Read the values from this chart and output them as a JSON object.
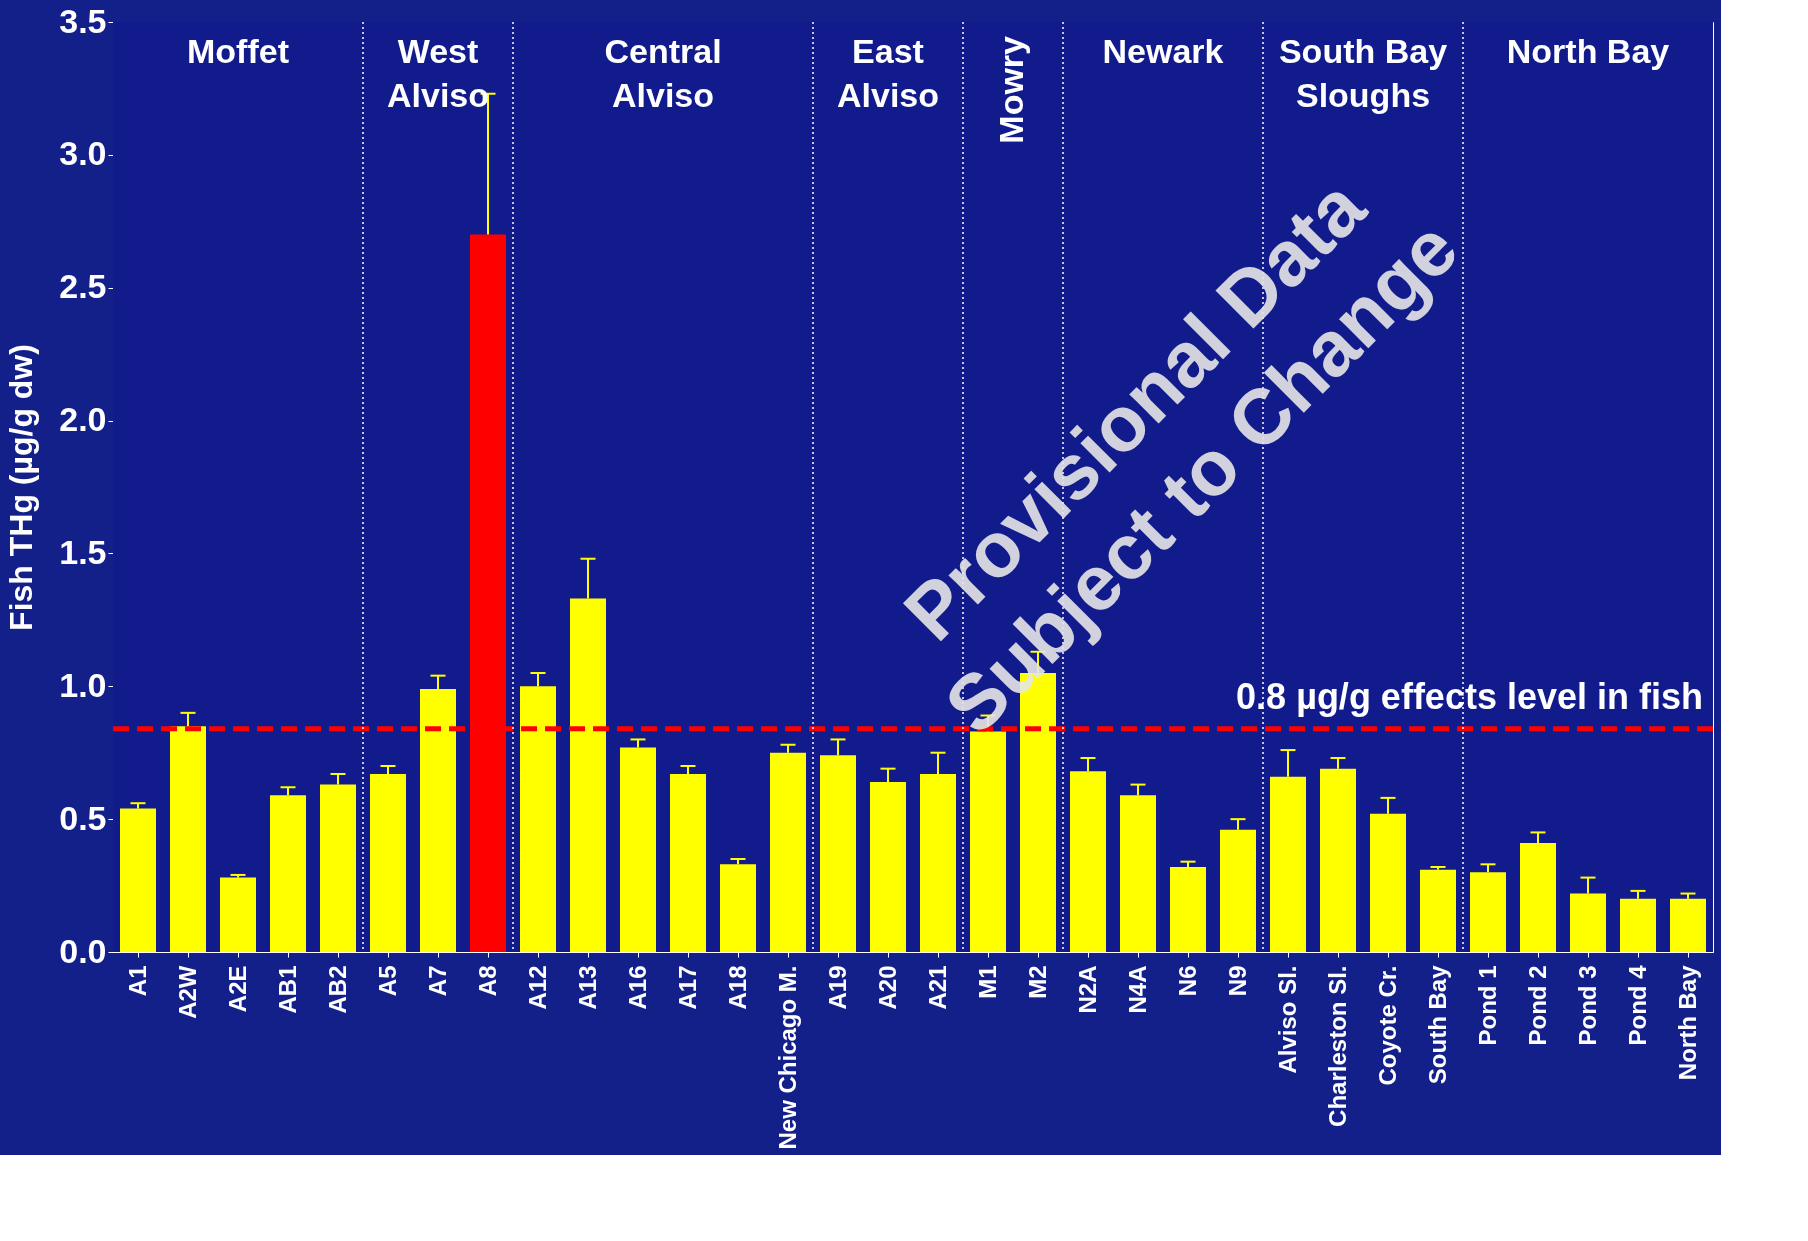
{
  "chart_data": {
    "type": "bar",
    "ylabel": "Fish THg (µg/g dw)",
    "categories": [
      "A1",
      "A2W",
      "A2E",
      "AB1",
      "AB2",
      "A5",
      "A7",
      "A8",
      "A12",
      "A13",
      "A16",
      "A17",
      "A18",
      "New Chicago M.",
      "A19",
      "A20",
      "A21",
      "M1",
      "M2",
      "N2A",
      "N4A",
      "N6",
      "N9",
      "Alviso Sl.",
      "Charleston Sl.",
      "Coyote Cr.",
      "South Bay",
      "Pond 1",
      "Pond 2",
      "Pond 3",
      "Pond 4",
      "North Bay"
    ],
    "values": [
      0.54,
      0.85,
      0.28,
      0.59,
      0.63,
      0.67,
      0.99,
      2.7,
      1.0,
      1.33,
      0.77,
      0.67,
      0.33,
      0.75,
      0.74,
      0.64,
      0.67,
      0.83,
      1.05,
      0.68,
      0.59,
      0.32,
      0.46,
      0.66,
      0.69,
      0.52,
      0.31,
      0.3,
      0.41,
      0.22,
      0.2,
      0.2
    ],
    "colors": [
      "#ffff00",
      "#ffff00",
      "#ffff00",
      "#ffff00",
      "#ffff00",
      "#ffff00",
      "#ffff00",
      "#ff0000",
      "#ffff00",
      "#ffff00",
      "#ffff00",
      "#ffff00",
      "#ffff00",
      "#ffff00",
      "#ffff00",
      "#ffff00",
      "#ffff00",
      "#ffff00",
      "#ffff00",
      "#ffff00",
      "#ffff00",
      "#ffff00",
      "#ffff00",
      "#ffff00",
      "#ffff00",
      "#ffff00",
      "#ffff00",
      "#ffff00",
      "#ffff00",
      "#ffff00",
      "#ffff00",
      "#ffff00"
    ],
    "errors": [
      [
        0.54,
        0.56
      ],
      [
        0.85,
        0.9
      ],
      [
        0.28,
        0.29
      ],
      [
        0.59,
        0.62
      ],
      [
        0.63,
        0.67
      ],
      [
        0.67,
        0.7
      ],
      [
        0.99,
        1.04
      ],
      [
        2.7,
        3.23
      ],
      [
        1.0,
        1.05
      ],
      [
        1.33,
        1.48
      ],
      [
        0.77,
        0.8
      ],
      [
        0.67,
        0.7
      ],
      [
        0.33,
        0.35
      ],
      [
        0.75,
        0.78
      ],
      [
        0.74,
        0.8
      ],
      [
        0.64,
        0.69
      ],
      [
        0.67,
        0.75
      ],
      [
        0.83,
        0.89
      ],
      [
        1.05,
        1.13
      ],
      [
        0.68,
        0.73
      ],
      [
        0.59,
        0.63
      ],
      [
        0.32,
        0.34
      ],
      [
        0.46,
        0.5
      ],
      [
        0.66,
        0.76
      ],
      [
        0.69,
        0.73
      ],
      [
        0.52,
        0.58
      ],
      [
        0.31,
        0.32
      ],
      [
        0.3,
        0.33
      ],
      [
        0.41,
        0.45
      ],
      [
        0.22,
        0.28
      ],
      [
        0.2,
        0.23
      ],
      [
        0.2,
        0.22
      ]
    ],
    "ylim": [
      0,
      3.5
    ],
    "yticks": [
      {
        "value": 0,
        "label": "0.0"
      },
      {
        "value": 0.5,
        "label": "0.5"
      },
      {
        "value": 1,
        "label": "1.0"
      },
      {
        "value": 1.5,
        "label": "1.5"
      },
      {
        "value": 2,
        "label": "2.0"
      },
      {
        "value": 2.5,
        "label": "2.5"
      },
      {
        "value": 3,
        "label": "3.0"
      },
      {
        "value": 3.5,
        "label": "3.5"
      }
    ],
    "ref_lines": [
      {
        "axis": "y",
        "value": 0.84,
        "label": "0.8 µg/g effects level in fish",
        "color": "#ff0000",
        "line_style": "dashed"
      }
    ],
    "bands": [
      {
        "axis": "x",
        "from": "A1",
        "to": "AB2",
        "label": "Moffet",
        "color": "#121b8c"
      },
      {
        "axis": "x",
        "from": "A5",
        "to": "A8",
        "label": "West\nAlviso",
        "color": "#121b8c"
      },
      {
        "axis": "x",
        "from": "A12",
        "to": "New Chicago M.",
        "label": "Central\nAlviso",
        "color": "#121b8c"
      },
      {
        "axis": "x",
        "from": "A19",
        "to": "A21",
        "label": "East\nAlviso",
        "color": "#121b8c"
      },
      {
        "axis": "x",
        "from": "M1",
        "to": "M2",
        "label": "Mowry",
        "color": "#121b8c"
      },
      {
        "axis": "x",
        "from": "N2A",
        "to": "N9",
        "label": "Newark",
        "color": "#121b8c"
      },
      {
        "axis": "x",
        "from": "Alviso Sl.",
        "to": "South Bay",
        "label": "South Bay\nSloughs",
        "color": "#121b8c"
      },
      {
        "axis": "x",
        "from": "Pond 1",
        "to": "North Bay",
        "label": "North Bay",
        "color": "#121b8c"
      }
    ],
    "annotations": [
      "Provisional Data\nSubject to Change"
    ],
    "grid": false
  }
}
